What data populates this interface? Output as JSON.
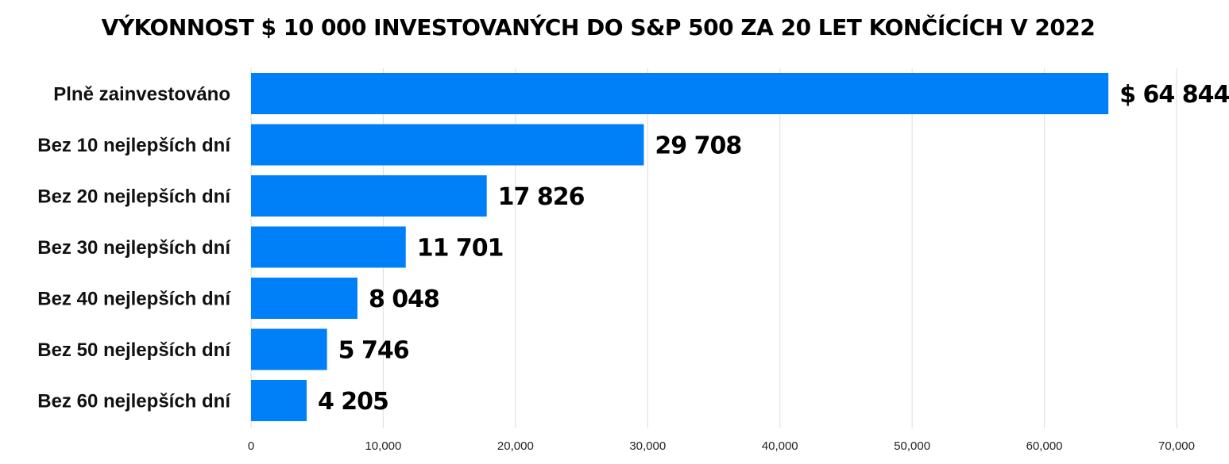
{
  "chart_data": {
    "type": "bar",
    "orientation": "horizontal",
    "title": "VÝKONNOST $ 10 000 INVESTOVANÝCH DO S&P 500 ZA 20 LET KONČÍCÍCH V 2022",
    "categories": [
      "Plně zainvestováno",
      "Bez 10 nejlepších dní",
      "Bez 20 nejlepších dní",
      "Bez 30 nejlepších dní",
      "Bez 40 nejlepších dní",
      "Bez 50 nejlepších dní",
      "Bez 60 nejlepších dní"
    ],
    "values": [
      64844,
      29708,
      17826,
      11701,
      8048,
      5746,
      4205
    ],
    "value_labels": [
      "$ 64 844",
      "29 708",
      "17 826",
      "11 701",
      "8 048",
      "5 746",
      "4 205"
    ],
    "xlim": [
      0,
      70000
    ],
    "xticks": [
      0,
      10000,
      20000,
      30000,
      40000,
      50000,
      60000,
      70000
    ],
    "xtick_labels": [
      "0",
      "10,000",
      "20,000",
      "30,000",
      "40,000",
      "50,000",
      "60,000",
      "70,000"
    ],
    "xlabel": "",
    "ylabel": "",
    "grid": true,
    "legend": "none",
    "bar_color": "#0080f8"
  }
}
